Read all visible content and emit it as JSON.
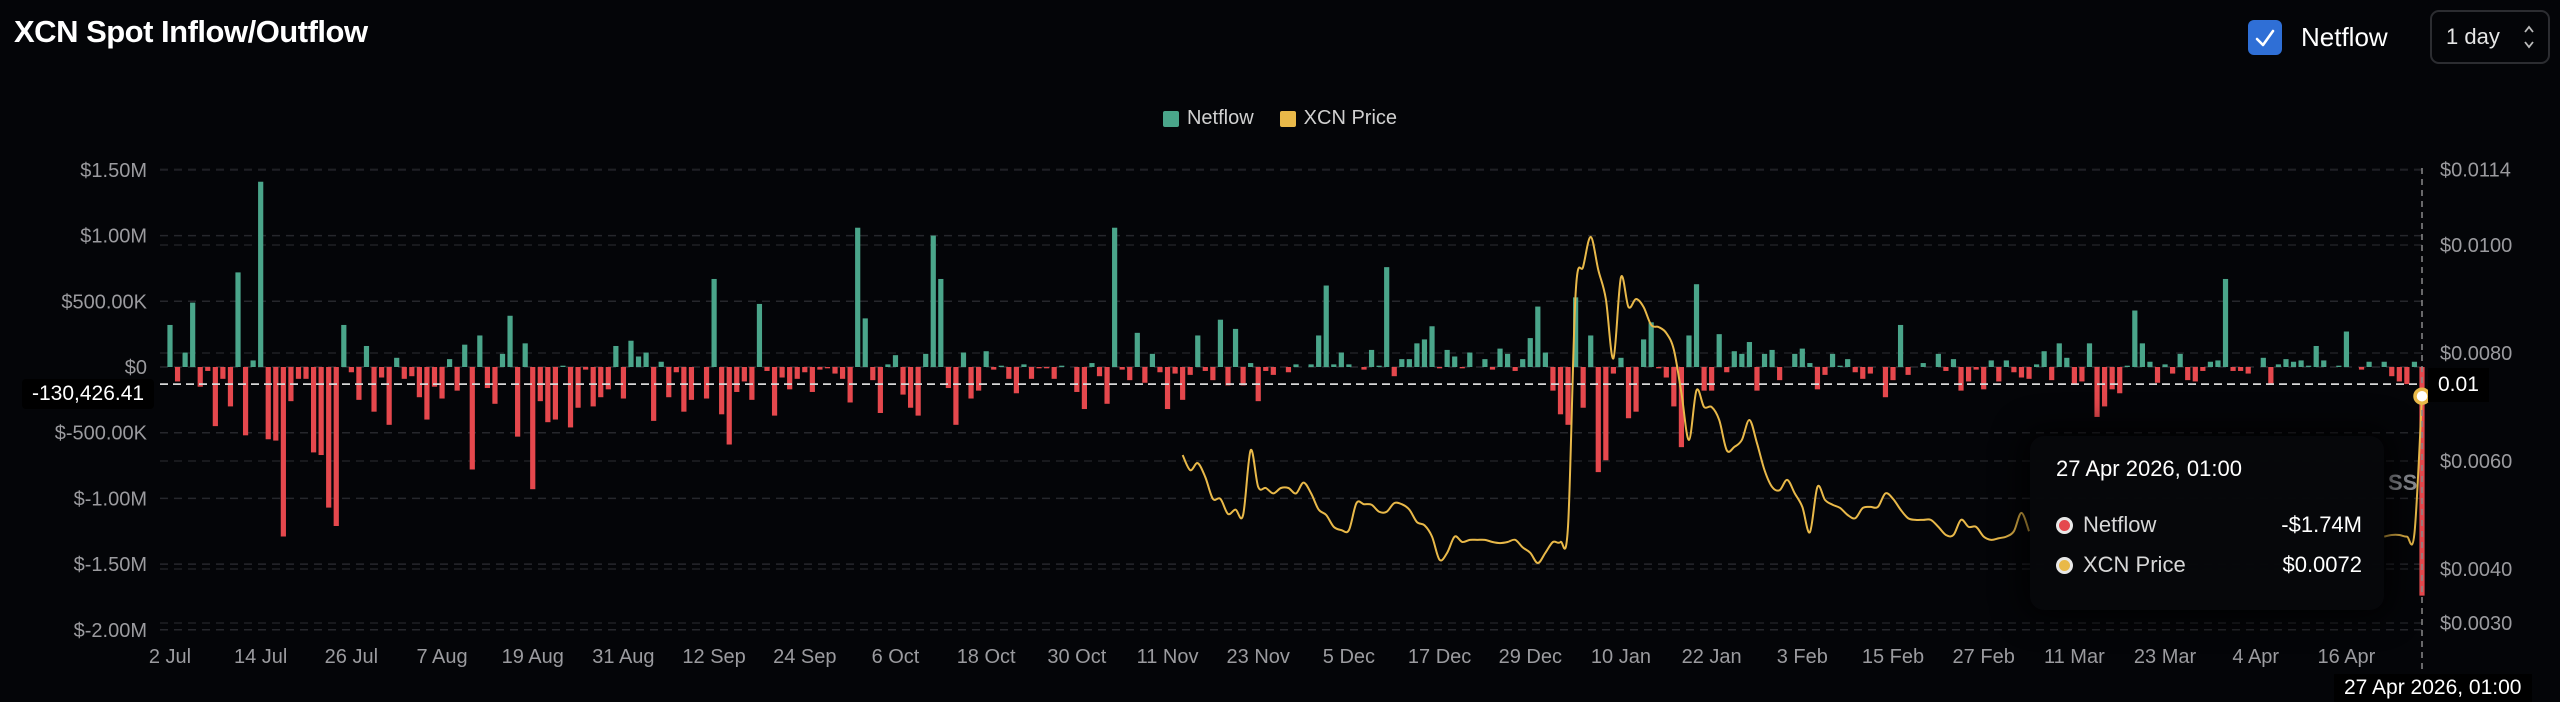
{
  "header": {
    "title": "XCN Spot Inflow/Outflow",
    "netflow_checkbox": {
      "label": "Netflow",
      "checked": true,
      "icon": "check-icon"
    },
    "interval_select": {
      "value": "1 day",
      "icon": "chevron-up-down-icon"
    }
  },
  "colors": {
    "background": "#040508",
    "netflow_positive": "#4aa58a",
    "netflow_negative": "#e5484d",
    "price": "#e9b949",
    "checkbox": "#2f6fd6"
  },
  "crosshair": {
    "y_value_label": "-130,426.41",
    "right_value_label": "0.01",
    "x_label": "27 Apr 2026, 01:00"
  },
  "tooltip": {
    "title": "27 Apr 2026, 01:00",
    "rows": [
      {
        "label": "Netflow",
        "value": "-$1.74M",
        "dot_color": "#e5484d"
      },
      {
        "label": "XCN Price",
        "value": "$0.0072",
        "dot_color": "#e9b949"
      }
    ]
  },
  "watermark": "SS",
  "chart_data": {
    "type": "bar+line",
    "title": "XCN Spot Inflow/Outflow",
    "legend": {
      "placement": "top-center",
      "entries": [
        {
          "name": "Netflow",
          "color": "#4aa58a"
        },
        {
          "name": "XCN Price",
          "color": "#e9b949"
        }
      ]
    },
    "grid": true,
    "x_tick_labels": [
      "2 Jul",
      "14 Jul",
      "26 Jul",
      "7 Aug",
      "19 Aug",
      "31 Aug",
      "12 Sep",
      "24 Sep",
      "6 Oct",
      "18 Oct",
      "30 Oct",
      "11 Nov",
      "23 Nov",
      "5 Dec",
      "17 Dec",
      "29 Dec",
      "10 Jan",
      "22 Jan",
      "3 Feb",
      "15 Feb",
      "27 Feb",
      "11 Mar",
      "23 Mar",
      "4 Apr",
      "16 Apr"
    ],
    "x_tick_interval_days": 12,
    "y_left": {
      "ticks": [
        1500000,
        1000000,
        500000,
        0,
        -500000,
        -1000000,
        -1500000,
        -2000000
      ],
      "tick_labels": [
        "$1.50M",
        "$1.00M",
        "$500.00K",
        "$0",
        "$-500.00K",
        "$-1.00M",
        "$-1.50M",
        "$-2.00M"
      ],
      "range": [
        -2000000,
        1500000
      ]
    },
    "y_right": {
      "ticks": [
        0.0114,
        0.01,
        0.008,
        0.006,
        0.004,
        0.003
      ],
      "tick_labels": [
        "$0.0114",
        "$0.0100",
        "$0.0080",
        "$0.0060",
        "$0.0040",
        "$0.0030"
      ],
      "range": [
        0.003,
        0.0114
      ]
    },
    "series": [
      {
        "name": "Netflow",
        "type": "bar",
        "axis": "left",
        "values": [
          320000,
          -110000,
          110000,
          490000,
          -150000,
          -30000,
          -450000,
          -90000,
          -300000,
          720000,
          -520000,
          50000,
          1410000,
          -550000,
          -560000,
          -1290000,
          -260000,
          -90000,
          -90000,
          -650000,
          -670000,
          -1070000,
          -1210000,
          320000,
          -40000,
          -250000,
          160000,
          -340000,
          -80000,
          -440000,
          70000,
          -90000,
          -70000,
          -230000,
          -400000,
          -150000,
          -240000,
          60000,
          -180000,
          170000,
          -780000,
          240000,
          -160000,
          -280000,
          100000,
          390000,
          -530000,
          180000,
          -930000,
          -260000,
          -420000,
          -400000,
          10000,
          -460000,
          -310000,
          -20000,
          -300000,
          -230000,
          -170000,
          160000,
          -240000,
          200000,
          80000,
          110000,
          -410000,
          40000,
          -230000,
          -40000,
          -340000,
          -250000,
          0,
          -240000,
          670000,
          -360000,
          -590000,
          -190000,
          -110000,
          -250000,
          480000,
          -30000,
          -370000,
          -80000,
          -170000,
          -90000,
          -40000,
          -190000,
          -20000,
          -10000,
          -50000,
          -90000,
          -270000,
          1060000,
          370000,
          -100000,
          -350000,
          20000,
          90000,
          -210000,
          -310000,
          -370000,
          100000,
          1000000,
          670000,
          -160000,
          -440000,
          110000,
          -240000,
          -180000,
          120000,
          -20000,
          10000,
          -90000,
          -200000,
          20000,
          -90000,
          -10000,
          -10000,
          -90000,
          10000,
          0,
          -190000,
          -320000,
          30000,
          -70000,
          -280000,
          1060000,
          -20000,
          -100000,
          260000,
          -120000,
          100000,
          -40000,
          -320000,
          -50000,
          -250000,
          -60000,
          240000,
          -30000,
          -100000,
          360000,
          -140000,
          290000,
          -140000,
          30000,
          -260000,
          -30000,
          -60000,
          0,
          -40000,
          20000,
          0,
          20000,
          240000,
          620000,
          20000,
          110000,
          20000,
          0,
          -20000,
          130000,
          10000,
          760000,
          -70000,
          60000,
          60000,
          180000,
          210000,
          310000,
          -10000,
          130000,
          80000,
          -10000,
          110000,
          0,
          60000,
          -20000,
          140000,
          100000,
          -30000,
          60000,
          220000,
          460000,
          110000,
          -180000,
          -360000,
          -440000,
          530000,
          -310000,
          240000,
          -800000,
          -710000,
          -50000,
          70000,
          -390000,
          -340000,
          210000,
          340000,
          -10000,
          -80000,
          -300000,
          -610000,
          240000,
          630000,
          -180000,
          -180000,
          250000,
          -40000,
          120000,
          100000,
          190000,
          -180000,
          100000,
          130000,
          -100000,
          0,
          100000,
          140000,
          30000,
          -170000,
          -60000,
          100000,
          10000,
          60000,
          -40000,
          -90000,
          -50000,
          0,
          -230000,
          -100000,
          320000,
          -60000,
          0,
          30000,
          0,
          100000,
          -30000,
          60000,
          -180000,
          -110000,
          -20000,
          -170000,
          50000,
          -110000,
          50000,
          -40000,
          -80000,
          -90000,
          20000,
          120000,
          -100000,
          180000,
          70000,
          -130000,
          -110000,
          180000,
          -380000,
          -300000,
          -170000,
          -200000,
          10000,
          430000,
          180000,
          40000,
          -120000,
          20000,
          -50000,
          100000,
          -100000,
          -110000,
          -30000,
          40000,
          50000,
          670000,
          -30000,
          -30000,
          -50000,
          0,
          70000,
          -130000,
          20000,
          60000,
          40000,
          50000,
          10000,
          160000,
          50000,
          0,
          10000,
          270000,
          0,
          -20000,
          40000,
          0,
          40000,
          -70000,
          -110000,
          -130000,
          40000,
          -1740000
        ]
      },
      {
        "name": "XCN Price",
        "type": "line",
        "axis": "right",
        "values": [
          null,
          null,
          null,
          null,
          null,
          null,
          null,
          null,
          null,
          null,
          null,
          null,
          null,
          null,
          null,
          null,
          null,
          null,
          null,
          null,
          null,
          null,
          null,
          null,
          null,
          null,
          null,
          null,
          null,
          null,
          null,
          null,
          null,
          null,
          null,
          null,
          null,
          null,
          null,
          null,
          null,
          null,
          null,
          null,
          null,
          null,
          null,
          null,
          null,
          null,
          null,
          null,
          null,
          null,
          null,
          null,
          null,
          null,
          null,
          null,
          null,
          null,
          null,
          null,
          null,
          null,
          null,
          null,
          null,
          null,
          null,
          null,
          null,
          null,
          null,
          null,
          null,
          null,
          null,
          null,
          null,
          null,
          null,
          null,
          null,
          null,
          null,
          null,
          null,
          null,
          null,
          null,
          null,
          null,
          null,
          null,
          null,
          null,
          null,
          null,
          null,
          null,
          null,
          null,
          null,
          null,
          null,
          null,
          null,
          null,
          null,
          null,
          null,
          null,
          null,
          null,
          null,
          null,
          null,
          null,
          null,
          null,
          null,
          null,
          null,
          null,
          null,
          null,
          null,
          null,
          null,
          null,
          null,
          null,
          0.00611,
          0.00583,
          0.00596,
          0.0057,
          0.0053,
          0.0053,
          0.00502,
          0.0051,
          0.005,
          0.0062,
          0.00552,
          0.0055,
          0.0054,
          0.0055,
          0.0055,
          0.0054,
          0.0056,
          0.0054,
          0.0051,
          0.005,
          0.00478,
          0.00472,
          0.00472,
          0.00522,
          0.0052,
          0.00519,
          0.00506,
          0.00506,
          0.00522,
          0.0052,
          0.0051,
          0.00487,
          0.00481,
          0.0046,
          0.00417,
          0.0043,
          0.0046,
          0.0045,
          0.00454,
          0.00454,
          0.00454,
          0.0045,
          0.00448,
          0.0045,
          0.00454,
          0.0044,
          0.0043,
          0.00411,
          0.0043,
          0.0045,
          0.0045,
          0.0048,
          0.0091,
          0.0096,
          0.01015,
          0.00954,
          0.009,
          0.0079,
          0.0094,
          0.00885,
          0.009,
          0.00885,
          0.00852,
          0.00848,
          0.00837,
          0.00806,
          0.00726,
          0.00639,
          0.00731,
          0.007,
          0.007,
          0.00676,
          0.0062,
          0.00626,
          0.00639,
          0.00676,
          0.00633,
          0.00583,
          0.00552,
          0.00546,
          0.00565,
          0.0054,
          0.00515,
          0.00468,
          0.00552,
          0.00528,
          0.00519,
          0.00513,
          0.005,
          0.00494,
          0.00513,
          0.00515,
          0.00515,
          0.0054,
          0.0053,
          0.0051,
          0.00494,
          0.00491,
          0.00491,
          0.00491,
          0.00478,
          0.00463,
          0.00463,
          0.00491,
          0.00478,
          0.00478,
          0.0046,
          0.00454,
          0.00457,
          0.0046,
          0.0047,
          0.00504,
          0.0047,
          null,
          null,
          null,
          null,
          null,
          null,
          null,
          null,
          null,
          null,
          null,
          null,
          null,
          null,
          null,
          null,
          null,
          null,
          null,
          null,
          null,
          null,
          null,
          null,
          null,
          null,
          null,
          null,
          null,
          null,
          null,
          null,
          null,
          null,
          null,
          null,
          null,
          null,
          null,
          null,
          null,
          null,
          null,
          null,
          null,
          null,
          0.0046,
          0.00463,
          0.00463,
          0.0046,
          0.00466,
          0.0072
        ]
      }
    ],
    "hover": {
      "date": "27 Apr 2026, 01:00",
      "netflow": -1740000,
      "price": 0.0072
    }
  }
}
